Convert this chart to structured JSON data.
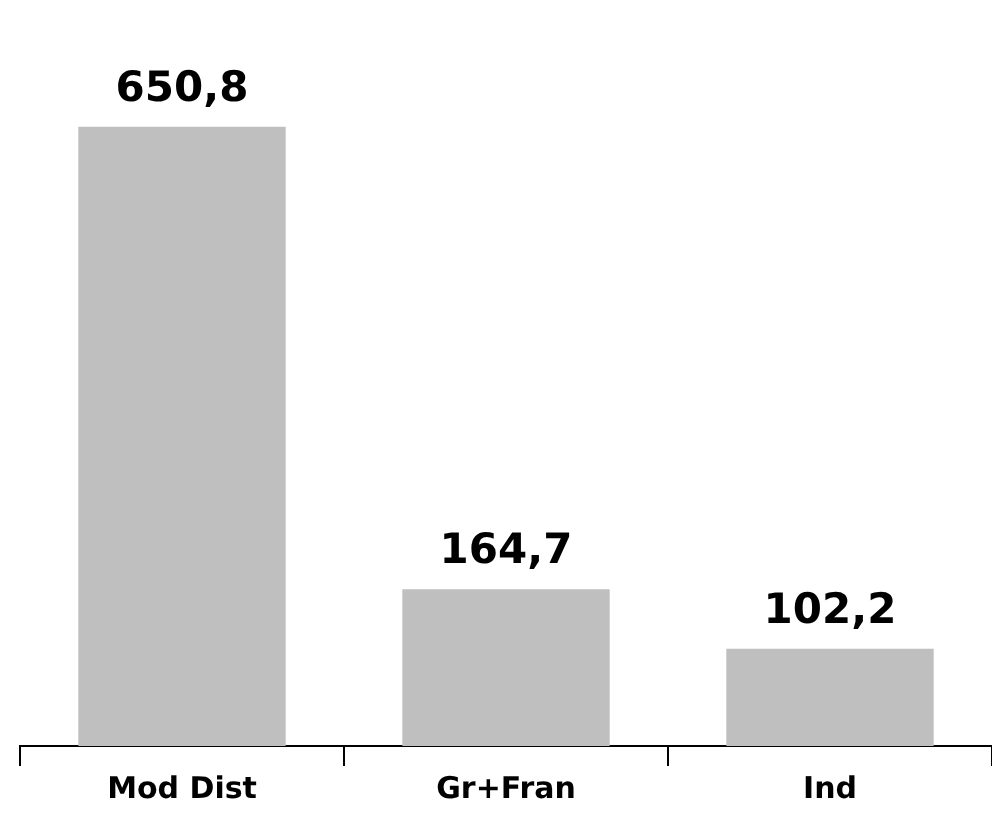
{
  "chart_data": {
    "type": "bar",
    "categories": [
      "Mod Dist",
      "Gr+Fran",
      "Ind"
    ],
    "values": [
      650.8,
      164.7,
      102.2
    ],
    "color": "#bfbfbf",
    "value_labels": [
      "650,8",
      "164,7",
      "102,2"
    ],
    "grid": false,
    "legend": false
  }
}
